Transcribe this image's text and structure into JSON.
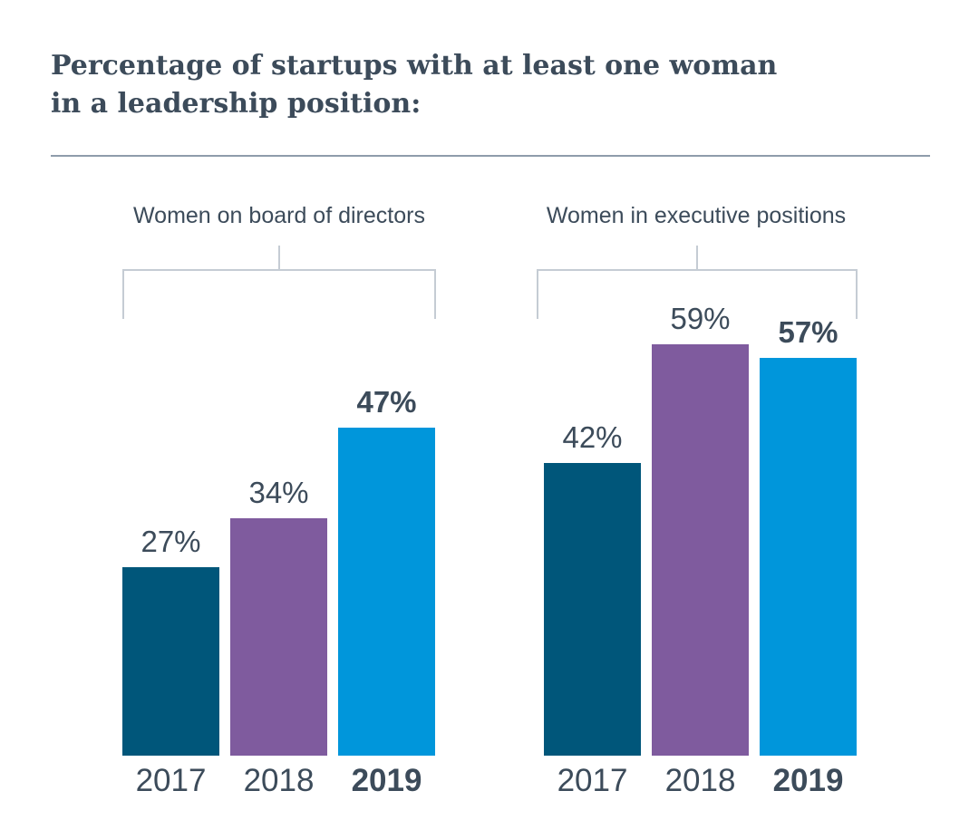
{
  "header": {
    "title_line1": "Percentage of startups with at least one woman",
    "title_line2": "in a leadership position:"
  },
  "colors": {
    "2017": "#00567a",
    "2018": "#7f5b9e",
    "2019": "#0096db",
    "text": "#3c4b5a"
  },
  "chart_data": [
    {
      "type": "bar",
      "title": "Women on board of directors",
      "categories": [
        "2017",
        "2018",
        "2019"
      ],
      "values": [
        27,
        34,
        47
      ],
      "value_labels": [
        "27%",
        "34%",
        "47%"
      ],
      "highlight": "2019",
      "ylim": [
        0,
        60
      ]
    },
    {
      "type": "bar",
      "title": "Women in executive positions",
      "categories": [
        "2017",
        "2018",
        "2019"
      ],
      "values": [
        42,
        59,
        57
      ],
      "value_labels": [
        "42%",
        "59%",
        "57%"
      ],
      "highlight": "2019",
      "ylim": [
        0,
        60
      ]
    }
  ]
}
